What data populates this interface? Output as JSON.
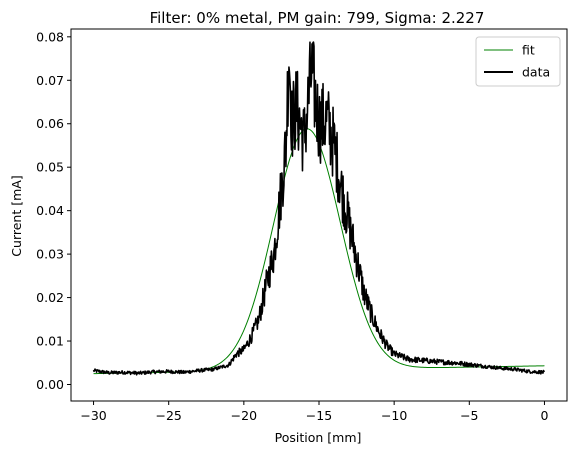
{
  "chart_data": {
    "type": "line",
    "title": "Filter: 0% metal, PM gain: 799, Sigma: 2.227",
    "xlabel": "Position [mm]",
    "ylabel": "Current [mA]",
    "xlim": [
      -31.5,
      1.5
    ],
    "ylim": [
      -0.0038,
      0.0818
    ],
    "xticks": [
      -30,
      -25,
      -20,
      -15,
      -10,
      -5,
      0
    ],
    "xtick_labels": [
      "−30",
      "−25",
      "−20",
      "−15",
      "−10",
      "−5",
      "0"
    ],
    "yticks": [
      0.0,
      0.01,
      0.02,
      0.03,
      0.04,
      0.05,
      0.06,
      0.07,
      0.08
    ],
    "ytick_labels": [
      "0.00",
      "0.01",
      "0.02",
      "0.03",
      "0.04",
      "0.05",
      "0.06",
      "0.07",
      "0.08"
    ],
    "grid": false,
    "legend_position": "top-right",
    "series": [
      {
        "name": "fit",
        "color": "#008000",
        "kind": "gaussian",
        "amplitude": 0.0555,
        "center": -15.8,
        "sigma": 2.227,
        "offset": 0.0025,
        "offset_slope": 6e-05,
        "x_range": [
          -30,
          0
        ]
      },
      {
        "name": "data",
        "color": "#000000",
        "points": [
          [
            -30,
            0.0032
          ],
          [
            -29,
            0.0027
          ],
          [
            -28,
            0.0028
          ],
          [
            -27,
            0.0026
          ],
          [
            -26,
            0.0029
          ],
          [
            -25,
            0.003
          ],
          [
            -24,
            0.0028
          ],
          [
            -23,
            0.0032
          ],
          [
            -22,
            0.0035
          ],
          [
            -21,
            0.0045
          ],
          [
            -20.5,
            0.007
          ],
          [
            -20,
            0.008
          ],
          [
            -19.5,
            0.011
          ],
          [
            -19,
            0.015
          ],
          [
            -18.5,
            0.023
          ],
          [
            -18,
            0.03
          ],
          [
            -17.5,
            0.045
          ],
          [
            -17.2,
            0.055
          ],
          [
            -17,
            0.0776
          ],
          [
            -16.8,
            0.06
          ],
          [
            -16.5,
            0.064
          ],
          [
            -16,
            0.056
          ],
          [
            -15.5,
            0.072
          ],
          [
            -15,
            0.06
          ],
          [
            -14.5,
            0.061
          ],
          [
            -14,
            0.055
          ],
          [
            -13.5,
            0.045
          ],
          [
            -13,
            0.037
          ],
          [
            -12.5,
            0.029
          ],
          [
            -12,
            0.021
          ],
          [
            -11.5,
            0.016
          ],
          [
            -11,
            0.012
          ],
          [
            -10.5,
            0.009
          ],
          [
            -10,
            0.007
          ],
          [
            -9,
            0.0058
          ],
          [
            -8,
            0.0055
          ],
          [
            -7,
            0.0052
          ],
          [
            -6,
            0.005
          ],
          [
            -5,
            0.0046
          ],
          [
            -4,
            0.0042
          ],
          [
            -3,
            0.0038
          ],
          [
            -2,
            0.0035
          ],
          [
            -1,
            0.003
          ],
          [
            0,
            0.0028
          ]
        ]
      }
    ]
  }
}
